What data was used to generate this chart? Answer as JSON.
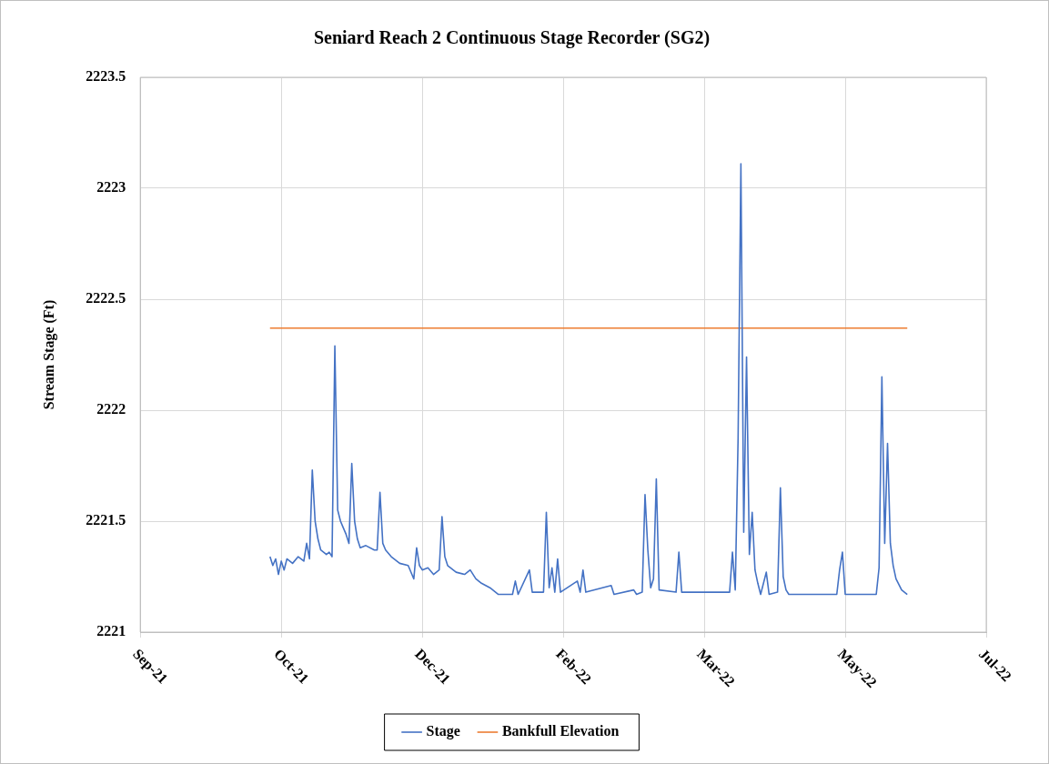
{
  "chart_data": {
    "type": "line",
    "title": "Seniard Reach 2 Continuous Stage Recorder (SG2)",
    "ylabel": "Stream Stage (Ft)",
    "xlim": [
      "2021-09-10",
      "2022-07-07"
    ],
    "xticks": [
      {
        "value": "2021-09-10",
        "label": "Sep-21"
      },
      {
        "value": "2021-10-30",
        "label": "Oct-21"
      },
      {
        "value": "2021-12-19",
        "label": "Dec-21"
      },
      {
        "value": "2022-02-07",
        "label": "Feb-22"
      },
      {
        "value": "2022-03-29",
        "label": "Mar-22"
      },
      {
        "value": "2022-05-18",
        "label": "May-22"
      },
      {
        "value": "2022-07-07",
        "label": "Jul-22"
      }
    ],
    "ylim": [
      2221,
      2223.5
    ],
    "yticks": [
      2221,
      2221.5,
      2222,
      2222.5,
      2223,
      2223.5
    ],
    "grid": true,
    "legend": "bottom",
    "marker": "none",
    "series": [
      {
        "name": "Stage",
        "color": "#4472c4",
        "x": [
          "2021-10-26",
          "2021-10-27",
          "2021-10-28",
          "2021-10-29",
          "2021-10-30",
          "2021-10-31",
          "2021-11-01",
          "2021-11-03",
          "2021-11-05",
          "2021-11-07",
          "2021-11-08",
          "2021-11-09",
          "2021-11-10",
          "2021-11-11",
          "2021-11-12",
          "2021-11-13",
          "2021-11-15",
          "2021-11-16",
          "2021-11-17",
          "2021-11-18",
          "2021-11-19",
          "2021-11-20",
          "2021-11-21",
          "2021-11-22",
          "2021-11-23",
          "2021-11-24",
          "2021-11-25",
          "2021-11-26",
          "2021-11-27",
          "2021-11-29",
          "2021-12-02",
          "2021-12-03",
          "2021-12-04",
          "2021-12-05",
          "2021-12-06",
          "2021-12-08",
          "2021-12-11",
          "2021-12-14",
          "2021-12-16",
          "2021-12-17",
          "2021-12-18",
          "2021-12-19",
          "2021-12-21",
          "2021-12-23",
          "2021-12-25",
          "2021-12-26",
          "2021-12-27",
          "2021-12-28",
          "2021-12-31",
          "2022-01-03",
          "2022-01-05",
          "2022-01-07",
          "2022-01-09",
          "2022-01-12",
          "2022-01-15",
          "2022-01-20",
          "2022-01-21",
          "2022-01-22",
          "2022-01-26",
          "2022-01-27",
          "2022-01-31",
          "2022-02-01",
          "2022-02-02",
          "2022-02-03",
          "2022-02-04",
          "2022-02-05",
          "2022-02-06",
          "2022-02-12",
          "2022-02-13",
          "2022-02-14",
          "2022-02-15",
          "2022-02-24",
          "2022-02-25",
          "2022-03-04",
          "2022-03-05",
          "2022-03-07",
          "2022-03-08",
          "2022-03-09",
          "2022-03-10",
          "2022-03-11",
          "2022-03-12",
          "2022-03-13",
          "2022-03-19",
          "2022-03-20",
          "2022-03-21",
          "2022-03-29",
          "2022-04-07",
          "2022-04-08",
          "2022-04-09",
          "2022-04-10",
          "2022-04-11",
          "2022-04-12",
          "2022-04-13",
          "2022-04-14",
          "2022-04-15",
          "2022-04-16",
          "2022-04-17",
          "2022-04-18",
          "2022-04-20",
          "2022-04-21",
          "2022-04-24",
          "2022-04-25",
          "2022-04-26",
          "2022-04-27",
          "2022-04-28",
          "2022-05-08",
          "2022-05-15",
          "2022-05-16",
          "2022-05-17",
          "2022-05-18",
          "2022-05-23",
          "2022-05-29",
          "2022-05-30",
          "2022-05-31",
          "2022-06-01",
          "2022-06-02",
          "2022-06-03",
          "2022-06-04",
          "2022-06-05",
          "2022-06-07",
          "2022-06-09"
        ],
        "values": [
          2221.34,
          2221.3,
          2221.33,
          2221.26,
          2221.32,
          2221.28,
          2221.33,
          2221.31,
          2221.34,
          2221.32,
          2221.4,
          2221.33,
          2221.73,
          2221.5,
          2221.42,
          2221.37,
          2221.35,
          2221.36,
          2221.34,
          2222.29,
          2221.55,
          2221.5,
          2221.47,
          2221.44,
          2221.4,
          2221.76,
          2221.5,
          2221.42,
          2221.38,
          2221.39,
          2221.37,
          2221.37,
          2221.63,
          2221.4,
          2221.37,
          2221.34,
          2221.31,
          2221.3,
          2221.24,
          2221.38,
          2221.3,
          2221.28,
          2221.29,
          2221.26,
          2221.28,
          2221.52,
          2221.34,
          2221.3,
          2221.27,
          2221.26,
          2221.28,
          2221.24,
          2221.22,
          2221.2,
          2221.17,
          2221.17,
          2221.23,
          2221.17,
          2221.28,
          2221.18,
          2221.18,
          2221.54,
          2221.2,
          2221.29,
          2221.18,
          2221.33,
          2221.18,
          2221.23,
          2221.18,
          2221.28,
          2221.18,
          2221.21,
          2221.17,
          2221.19,
          2221.17,
          2221.18,
          2221.62,
          2221.37,
          2221.2,
          2221.24,
          2221.69,
          2221.19,
          2221.18,
          2221.36,
          2221.18,
          2221.18,
          2221.18,
          2221.36,
          2221.19,
          2221.87,
          2223.11,
          2221.45,
          2222.24,
          2221.35,
          2221.54,
          2221.28,
          2221.22,
          2221.17,
          2221.27,
          2221.17,
          2221.18,
          2221.65,
          2221.25,
          2221.19,
          2221.17,
          2221.17,
          2221.17,
          2221.28,
          2221.36,
          2221.17,
          2221.17,
          2221.17,
          2221.29,
          2222.15,
          2221.4,
          2221.85,
          2221.4,
          2221.3,
          2221.24,
          2221.19,
          2221.17
        ]
      },
      {
        "name": "Bankfull Elevation",
        "color": "#ed7d31",
        "x": [
          "2021-10-26",
          "2022-06-09"
        ],
        "values": [
          2222.37,
          2222.37
        ]
      }
    ]
  }
}
